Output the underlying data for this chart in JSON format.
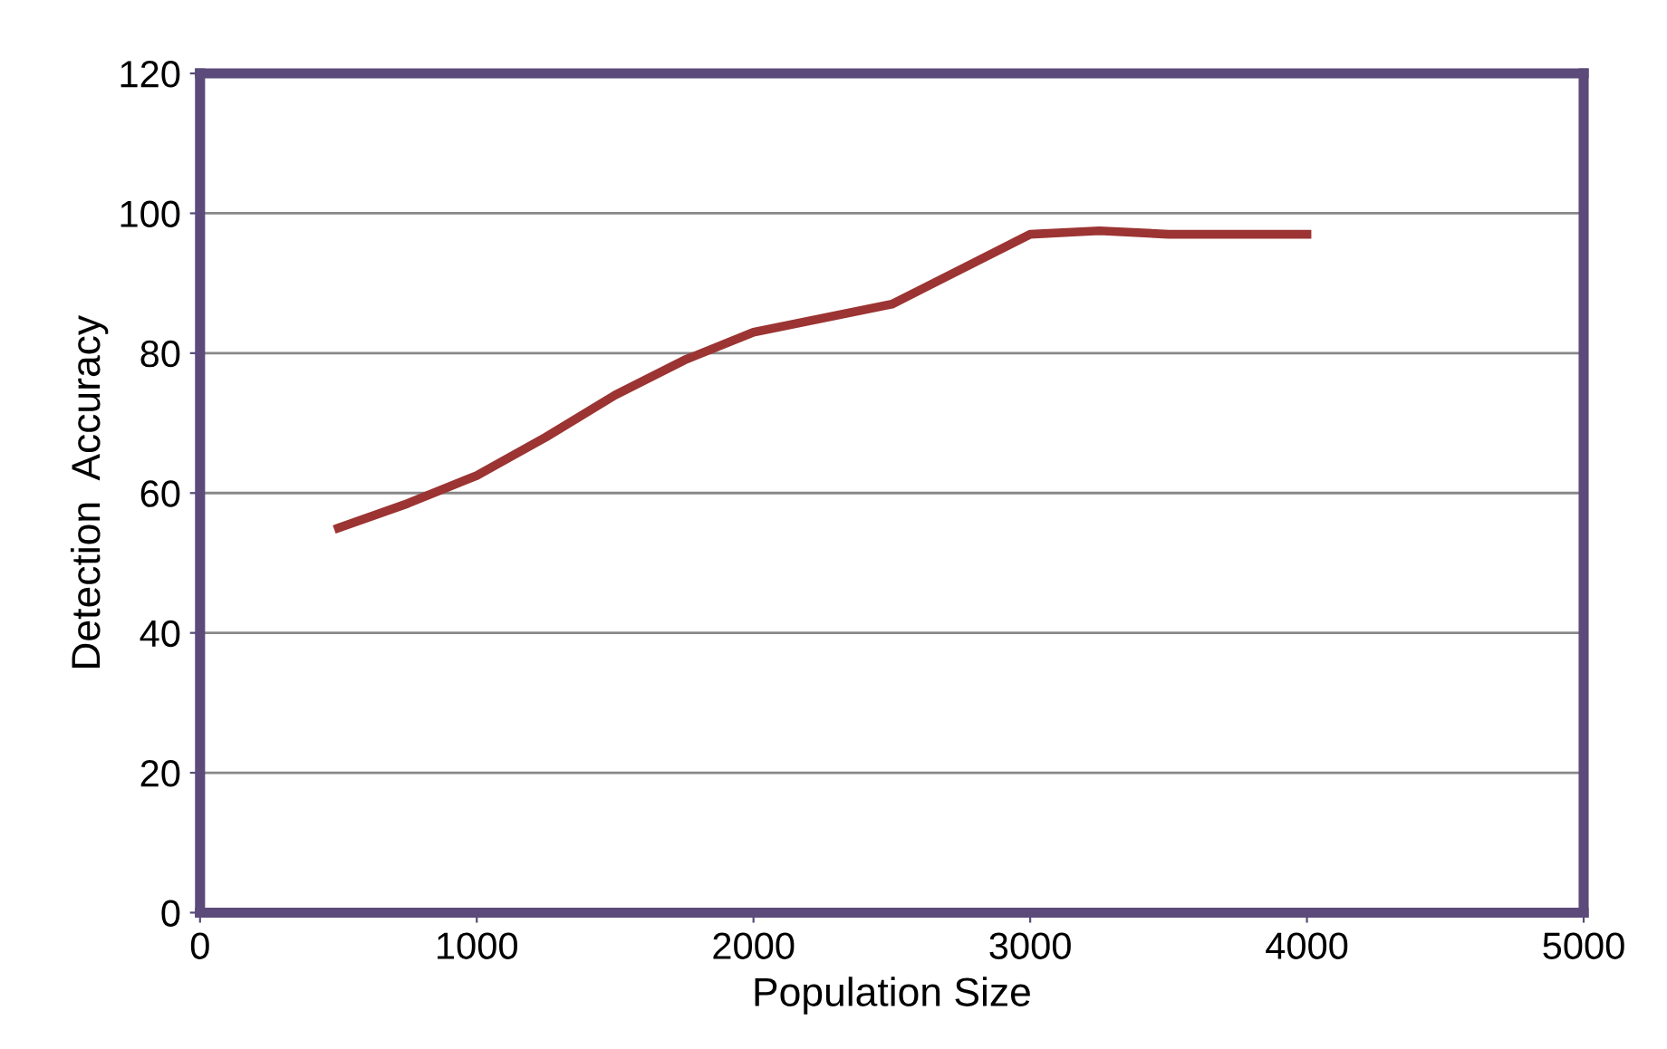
{
  "chart_data": {
    "type": "line",
    "xlabel": "Population Size",
    "ylabel": "Detection  Accuracy",
    "x": [
      500,
      750,
      1000,
      1250,
      1500,
      1750,
      2000,
      2250,
      2500,
      2750,
      3000,
      3250,
      3500,
      3750,
      4000
    ],
    "series": [
      {
        "color": "#9b3432",
        "values": [
          55,
          58.5,
          62.5,
          68,
          74,
          79,
          83,
          85,
          87,
          92,
          97,
          97.5,
          97,
          97,
          97
        ]
      }
    ],
    "xlim": [
      0,
      5000
    ],
    "xticks": [
      0,
      1000,
      2000,
      3000,
      4000,
      5000
    ],
    "ylim": [
      0,
      120
    ],
    "yticks": [
      0,
      20,
      40,
      60,
      80,
      100,
      120
    ],
    "grid": "y",
    "legend": false,
    "marker": "none",
    "line_style": "solid"
  }
}
